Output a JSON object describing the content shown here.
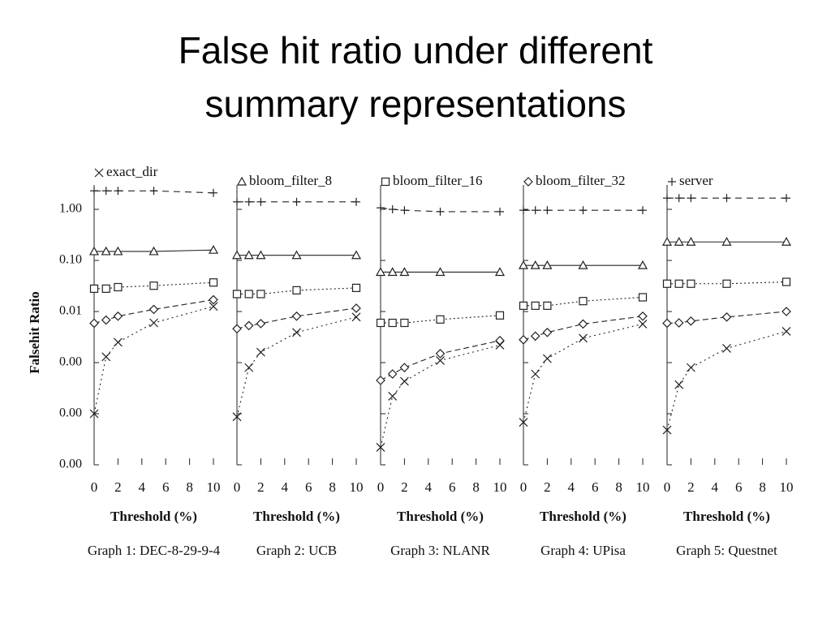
{
  "title_lines": [
    "False hit ratio under different",
    "summary representations"
  ],
  "ylabel": "Falsehit Ratio",
  "legend": [
    "exact_dir",
    "bloom_filter_8",
    "bloom_filter_16",
    "bloom_filter_32",
    "server"
  ],
  "chart_data": [
    {
      "type": "line",
      "caption": "Graph 1: DEC-8-29-9-4",
      "xlabel": "Threshold (%)",
      "log_y": true,
      "ylim": [
        1e-05,
        3
      ],
      "yticks": [
        {
          "value": 1,
          "label": "1.00"
        },
        {
          "value": 0.1,
          "label": "0.10"
        },
        {
          "value": 0.01,
          "label": "0.01"
        },
        {
          "value": 0.001,
          "label": "0.00"
        },
        {
          "value": 0.0001,
          "label": "0.00"
        },
        {
          "value": 1e-05,
          "label": "0.00"
        }
      ],
      "xlim": [
        0,
        10
      ],
      "xticks": [
        0,
        2,
        4,
        6,
        8,
        10
      ],
      "x": [
        0,
        1,
        2,
        5,
        10
      ],
      "series": [
        {
          "values": [
            0.0001,
            0.0013,
            0.0025,
            0.006,
            0.0126
          ]
        },
        {
          "values": [
            0.15,
            0.15,
            0.15,
            0.15,
            0.16
          ]
        },
        {
          "values": [
            0.028,
            0.028,
            0.03,
            0.032,
            0.037
          ]
        },
        {
          "values": [
            0.0059,
            0.0068,
            0.0081,
            0.011,
            0.017
          ]
        },
        {
          "values": [
            2.3,
            2.3,
            2.3,
            2.3,
            2.1
          ]
        }
      ]
    },
    {
      "type": "line",
      "caption": "Graph 2: UCB",
      "xlabel": "Threshold (%)",
      "xlim": [
        0,
        10
      ],
      "xticks": [
        0,
        2,
        4,
        6,
        8,
        10
      ],
      "x": [
        0,
        1,
        2,
        5,
        10
      ],
      "series": [
        {
          "values": [
            8.7e-05,
            0.0008,
            0.0016,
            0.0039,
            0.0078
          ]
        },
        {
          "values": [
            0.126,
            0.126,
            0.126,
            0.126,
            0.126
          ]
        },
        {
          "values": [
            0.022,
            0.022,
            0.022,
            0.026,
            0.029
          ]
        },
        {
          "values": [
            0.0046,
            0.0053,
            0.0058,
            0.0081,
            0.0116
          ]
        },
        {
          "values": [
            1.4,
            1.4,
            1.4,
            1.4,
            1.4
          ]
        }
      ]
    },
    {
      "type": "line",
      "caption": "Graph 3: NLANR",
      "xlabel": "Threshold (%)",
      "xlim": [
        0,
        10
      ],
      "xticks": [
        0,
        2,
        4,
        6,
        8,
        10
      ],
      "x": [
        0,
        1,
        2,
        5,
        10
      ],
      "series": [
        {
          "values": [
            2.2e-05,
            0.00022,
            0.00043,
            0.0011,
            0.0022
          ]
        },
        {
          "values": [
            0.059,
            0.059,
            0.059,
            0.059,
            0.059
          ]
        },
        {
          "values": [
            0.006,
            0.006,
            0.006,
            0.007,
            0.0084
          ]
        },
        {
          "values": [
            0.00045,
            0.0006,
            0.0008,
            0.0015,
            0.0027
          ]
        },
        {
          "values": [
            1.07,
            1.0,
            0.96,
            0.9,
            0.9
          ]
        }
      ]
    },
    {
      "type": "line",
      "caption": "Graph 4: UPisa",
      "xlabel": "Threshold (%)",
      "xlim": [
        0,
        10
      ],
      "xticks": [
        0,
        2,
        4,
        6,
        8,
        10
      ],
      "x": [
        0,
        1,
        2,
        5,
        10
      ],
      "series": [
        {
          "values": [
            6.8e-05,
            0.0006,
            0.0012,
            0.003,
            0.0057
          ]
        },
        {
          "values": [
            0.08,
            0.08,
            0.08,
            0.08,
            0.08
          ]
        },
        {
          "values": [
            0.013,
            0.013,
            0.013,
            0.016,
            0.019
          ]
        },
        {
          "values": [
            0.0028,
            0.0033,
            0.0039,
            0.0057,
            0.0081
          ]
        },
        {
          "values": [
            0.96,
            0.96,
            0.96,
            0.96,
            0.96
          ]
        }
      ]
    },
    {
      "type": "line",
      "caption": "Graph 5: Questnet",
      "xlabel": "Threshold (%)",
      "xlim": [
        0,
        10
      ],
      "xticks": [
        0,
        2,
        4,
        6,
        8,
        10
      ],
      "x": [
        0,
        1,
        2,
        5,
        10
      ],
      "series": [
        {
          "values": [
            4.8e-05,
            0.00037,
            0.0008,
            0.0019,
            0.0041
          ]
        },
        {
          "values": [
            0.23,
            0.23,
            0.23,
            0.23,
            0.23
          ]
        },
        {
          "values": [
            0.035,
            0.035,
            0.035,
            0.035,
            0.038
          ]
        },
        {
          "values": [
            0.0059,
            0.006,
            0.0065,
            0.0078,
            0.01
          ]
        },
        {
          "values": [
            1.66,
            1.66,
            1.66,
            1.66,
            1.66
          ]
        }
      ]
    }
  ]
}
